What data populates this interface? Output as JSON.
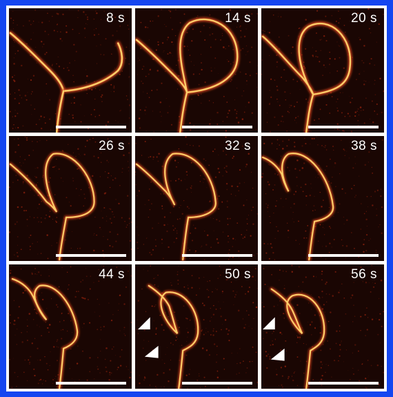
{
  "panels": [
    {
      "time": "8 s",
      "arrows": 0
    },
    {
      "time": "14 s",
      "arrows": 0
    },
    {
      "time": "20 s",
      "arrows": 0
    },
    {
      "time": "26 s",
      "arrows": 0
    },
    {
      "time": "32 s",
      "arrows": 0
    },
    {
      "time": "38 s",
      "arrows": 0
    },
    {
      "time": "44 s",
      "arrows": 0
    },
    {
      "time": "50 s",
      "arrows": 2
    },
    {
      "time": "56 s",
      "arrows": 2
    }
  ],
  "colors": {
    "border": "#1446f0",
    "background": "#1a0603",
    "strand": "#ffcf6a",
    "strand_glow": "#c5401a",
    "label": "#ffffff"
  }
}
